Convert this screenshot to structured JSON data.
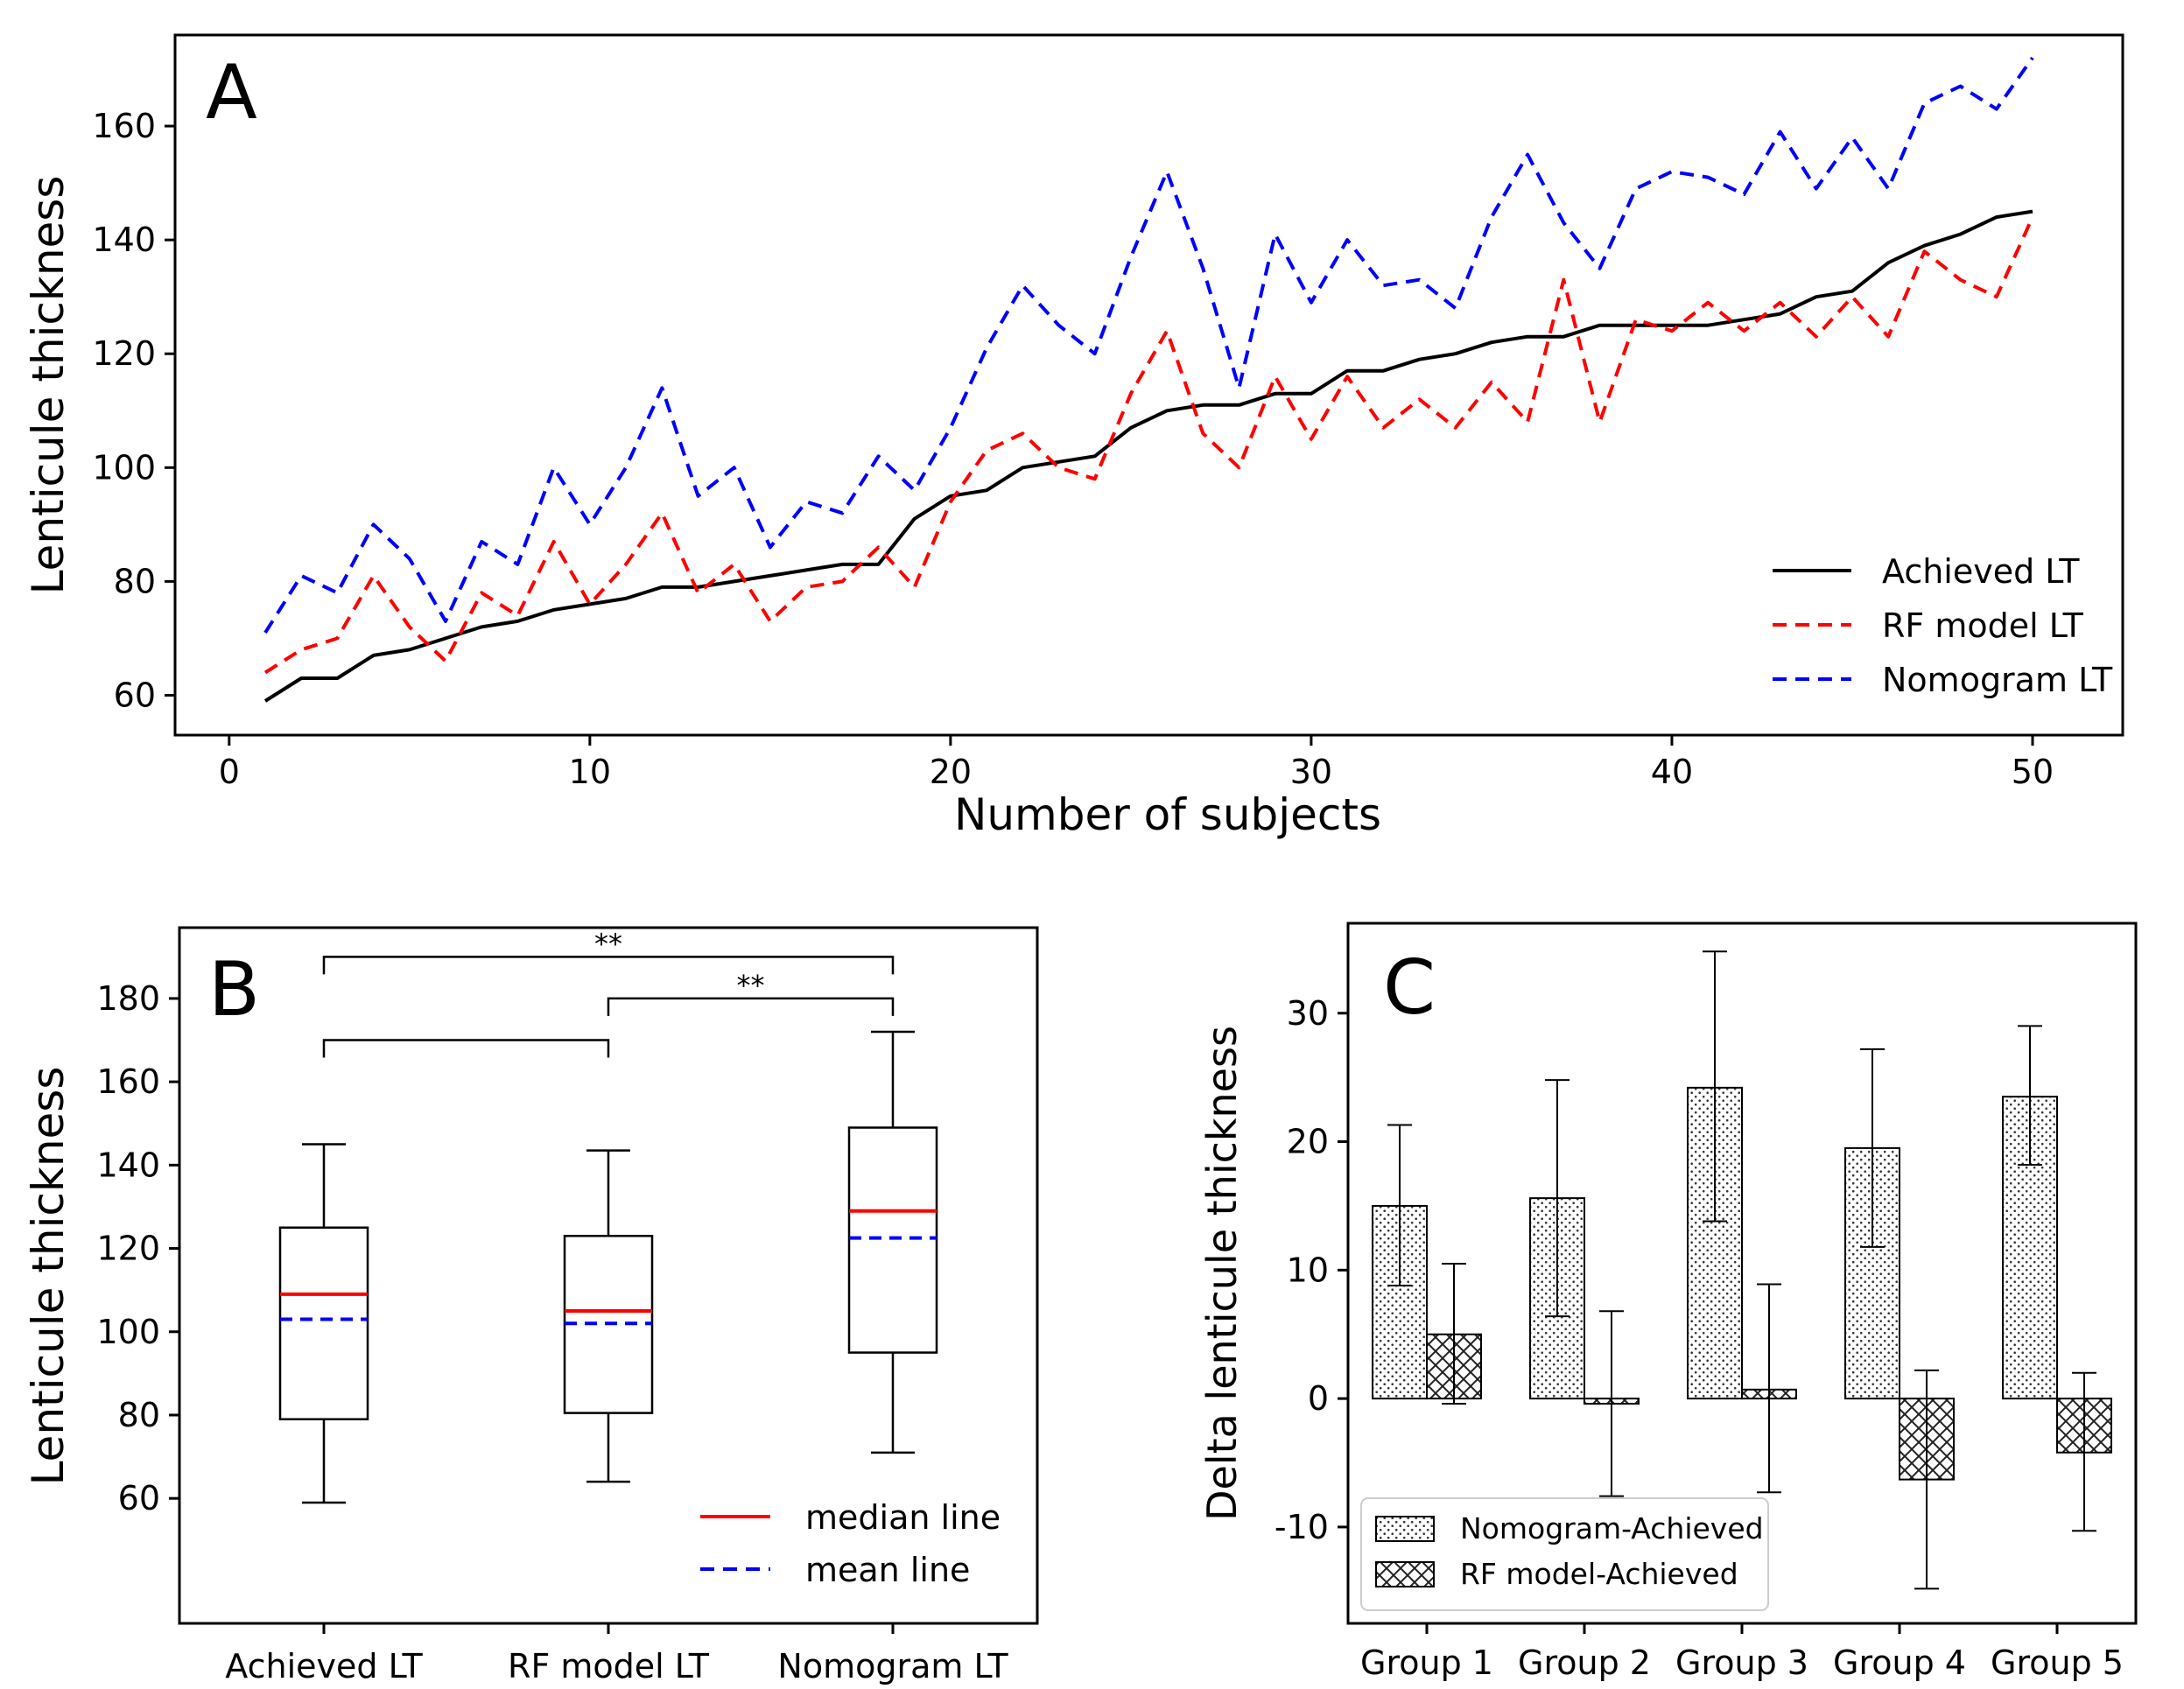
{
  "colors": {
    "achieved": "#000000",
    "rf_model": "#ff0000",
    "nomogram": "#0000ff",
    "median": "#ff0000",
    "mean": "#0000ff"
  },
  "chart_data": [
    {
      "panel": "A",
      "type": "line",
      "title": "",
      "xlabel": "Number of subjects",
      "ylabel": "Lenticule thickness",
      "xlim": [
        -1.5,
        52.5
      ],
      "ylim": [
        53,
        176
      ],
      "xticks": [
        0,
        10,
        20,
        30,
        40,
        50
      ],
      "yticks": [
        60,
        80,
        100,
        120,
        140,
        160
      ],
      "legend_position": "lower-right",
      "x": [
        1,
        2,
        3,
        4,
        5,
        6,
        7,
        8,
        9,
        10,
        11,
        12,
        13,
        14,
        15,
        16,
        17,
        18,
        19,
        20,
        21,
        22,
        23,
        24,
        25,
        26,
        27,
        28,
        29,
        30,
        31,
        32,
        33,
        34,
        35,
        36,
        37,
        38,
        39,
        40,
        41,
        42,
        43,
        44,
        45,
        46,
        47,
        48,
        49,
        50
      ],
      "series": [
        {
          "name": "Achieved LT",
          "style": "solid",
          "color": "#000000",
          "values": [
            59,
            63,
            63,
            67,
            68,
            70,
            72,
            73,
            75,
            76,
            77,
            79,
            79,
            80,
            81,
            82,
            83,
            83,
            91,
            95,
            96,
            100,
            101,
            102,
            107,
            110,
            111,
            111,
            113,
            113,
            117,
            117,
            119,
            120,
            122,
            123,
            123,
            125,
            125,
            125,
            125,
            126,
            127,
            130,
            131,
            136,
            139,
            141,
            144,
            145
          ]
        },
        {
          "name": "RF model LT",
          "style": "dashed",
          "color": "#ff0000",
          "values": [
            64,
            68,
            70,
            81,
            72,
            66,
            78,
            74,
            87,
            76,
            83,
            92,
            78,
            83,
            73,
            79,
            80,
            86,
            79,
            94,
            103,
            106,
            100,
            98,
            113,
            124,
            106,
            100,
            116,
            105,
            116,
            107,
            112,
            107,
            115,
            108,
            133,
            108,
            126,
            124,
            129,
            124,
            129,
            123,
            130,
            123,
            138,
            133,
            130,
            144
          ]
        },
        {
          "name": "Nomogram LT",
          "style": "dashed",
          "color": "#0000ff",
          "values": [
            71,
            81,
            78,
            90,
            84,
            73,
            87,
            83,
            100,
            90,
            100,
            114,
            95,
            100,
            86,
            94,
            92,
            102,
            96,
            107,
            121,
            132,
            125,
            120,
            137,
            152,
            135,
            114,
            141,
            129,
            140,
            132,
            133,
            128,
            144,
            155,
            143,
            135,
            149,
            152,
            151,
            148,
            159,
            149,
            158,
            149,
            164,
            167,
            163,
            172
          ]
        }
      ]
    },
    {
      "panel": "B",
      "type": "box",
      "title": "",
      "xlabel": "",
      "ylabel": "Lenticule thickness",
      "ylim": [
        30,
        197
      ],
      "yticks": [
        60,
        80,
        100,
        120,
        140,
        160,
        180
      ],
      "legend_position": "lower-right",
      "categories": [
        "Achieved LT",
        "RF model LT",
        "Nomogram LT"
      ],
      "boxes": [
        {
          "whisker_low": 59,
          "q1": 79,
          "median": 109,
          "mean": 103,
          "q3": 125,
          "whisker_high": 145
        },
        {
          "whisker_low": 64,
          "q1": 80.5,
          "median": 105,
          "mean": 102,
          "q3": 123,
          "whisker_high": 143.5
        },
        {
          "whisker_low": 71,
          "q1": 95,
          "median": 129,
          "mean": 122.5,
          "q3": 149,
          "whisker_high": 172
        }
      ],
      "legend": [
        "median line",
        "mean line"
      ],
      "significance": [
        {
          "from": 0,
          "to": 2,
          "y": 190,
          "label": "**"
        },
        {
          "from": 1,
          "to": 2,
          "y": 180,
          "label": "**"
        },
        {
          "from": 0,
          "to": 1,
          "y": 170,
          "label": ""
        }
      ]
    },
    {
      "panel": "C",
      "type": "bar",
      "title": "",
      "xlabel": "",
      "ylabel": "Delta lenticule thickness",
      "ylim": [
        -17.5,
        37
      ],
      "yticks": [
        -10,
        0,
        10,
        20,
        30
      ],
      "legend_position": "lower-left",
      "categories": [
        "Group 1",
        "Group 2",
        "Group 3",
        "Group 4",
        "Group 5"
      ],
      "series": [
        {
          "name": "Nomogram-Achieved",
          "hatch": "dots",
          "values": [
            15,
            15.6,
            24.2,
            19.5,
            23.5
          ],
          "err_low": [
            8.8,
            6.4,
            13.8,
            11.8,
            18.2
          ],
          "err_high": [
            21.3,
            24.8,
            34.8,
            27.2,
            29
          ]
        },
        {
          "name": "RF model-Achieved",
          "hatch": "cross",
          "values": [
            5,
            -0.4,
            0.7,
            -6.3,
            -4.2
          ],
          "err_low": [
            -0.4,
            -7.6,
            -7.3,
            -14.8,
            -10.3
          ],
          "err_high": [
            10.5,
            6.8,
            8.9,
            2.2,
            2
          ]
        }
      ]
    }
  ],
  "panel_letters": [
    "A",
    "B",
    "C"
  ]
}
